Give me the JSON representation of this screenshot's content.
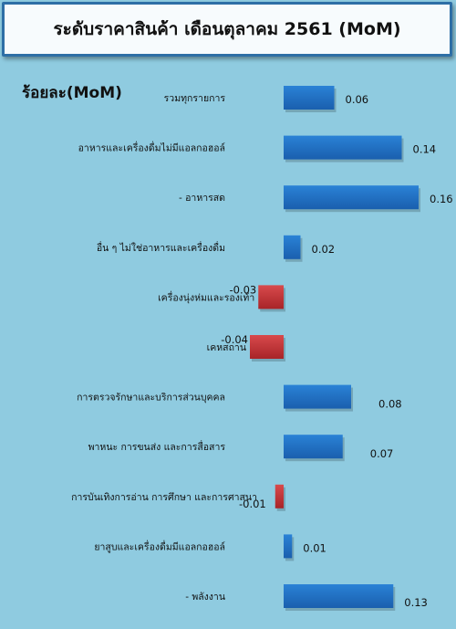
{
  "title": "ระดับราคาสินค้า เดือนตุลาคม 2561 (MoM)",
  "chart_data": {
    "type": "bar",
    "orientation": "horizontal",
    "ylabel": "ร้อยละ(MoM)",
    "categories": [
      "รวมทุกรายการ",
      "อาหารและเครื่องดื่มไม่มีแอลกอฮอล์",
      "- อาหารสด",
      "อื่น ๆ ไม่ใช่อาหารและเครื่องดื่ม",
      "เครื่องนุ่งห่มและรองเท้า",
      "เคหสถาน",
      "การตรวจรักษาและบริการส่วนบุคคล",
      "พาหนะ การขนส่ง และการสื่อสาร",
      "การบันเทิงการอ่าน การศึกษา และการศาสนา",
      "ยาสูบและเครื่องดื่มมีแอลกอฮอล์",
      "- พลังงาน"
    ],
    "values": [
      0.06,
      0.14,
      0.16,
      0.02,
      -0.03,
      -0.04,
      0.08,
      0.07,
      -0.01,
      0.01,
      0.13
    ],
    "value_labels": [
      "0.06",
      "0.14",
      "0.16",
      "0.02",
      "-0.03",
      "-0.04",
      "0.08",
      "0.07",
      "-0.01",
      "0.01",
      "0.13"
    ],
    "xlim": [
      -0.04,
      0.16
    ],
    "colors": {
      "positive": "#1f6fc4",
      "negative": "#c8363a",
      "background": "#8fcbe0"
    },
    "grid": false,
    "legend": "none"
  }
}
